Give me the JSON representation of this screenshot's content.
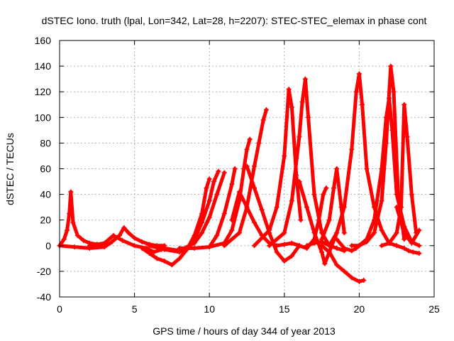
{
  "chart_data": {
    "type": "line",
    "title": "dSTEC Iono. truth (lpal, Lon=342, Lat=28, h=2207): STEC-STEC_elemax in phase cont",
    "xlabel": "GPS time / hours of day 344 of year 2013",
    "ylabel": "dSTEC  / TECUs",
    "xlim": [
      0,
      25
    ],
    "ylim": [
      -40,
      160
    ],
    "xticks": [
      0,
      5,
      10,
      15,
      20,
      25
    ],
    "yticks": [
      -40,
      -20,
      0,
      20,
      40,
      60,
      80,
      100,
      120,
      140,
      160
    ],
    "grid": true,
    "marker": "+",
    "series_color": "#ff0000",
    "series": [
      {
        "x": [
          0.0,
          0.3,
          0.5,
          0.65,
          0.75,
          0.9,
          1.2,
          1.6,
          2.0,
          2.5,
          3.0
        ],
        "y": [
          0,
          5,
          12,
          25,
          42,
          18,
          8,
          4,
          2,
          1,
          0
        ]
      },
      {
        "x": [
          0.0,
          1.0,
          2.0,
          3.0,
          3.5,
          4.0,
          4.3,
          4.6,
          5.0,
          5.5,
          6.0,
          6.5,
          7.0
        ],
        "y": [
          0,
          -1,
          -2,
          -1,
          3,
          8,
          14,
          10,
          6,
          3,
          1,
          0,
          0
        ]
      },
      {
        "x": [
          2.0,
          3.0,
          3.6,
          4.2,
          5.0,
          5.8,
          6.3,
          6.8
        ],
        "y": [
          0,
          2,
          8,
          4,
          0,
          -2,
          -5,
          -3
        ]
      },
      {
        "x": [
          5.5,
          6.0,
          6.5,
          7.0,
          7.5,
          8.0,
          8.5,
          9.0,
          9.5,
          9.8,
          10.0
        ],
        "y": [
          -2,
          -6,
          -10,
          -12,
          -15,
          -10,
          -3,
          8,
          25,
          45,
          52
        ]
      },
      {
        "x": [
          6.0,
          7.0,
          8.0,
          8.5,
          9.0,
          9.5,
          10.0,
          10.3,
          10.6
        ],
        "y": [
          0,
          -3,
          -5,
          -3,
          5,
          18,
          35,
          50,
          58
        ]
      },
      {
        "x": [
          7.0,
          8.0,
          9.0,
          9.5,
          10.0,
          10.5,
          11.0
        ],
        "y": [
          -2,
          -4,
          2,
          10,
          22,
          40,
          57
        ]
      },
      {
        "x": [
          8.0,
          9.0,
          10.0,
          10.5,
          11.0,
          11.5,
          11.7
        ],
        "y": [
          -2,
          -2,
          -1,
          8,
          25,
          48,
          60
        ]
      },
      {
        "x": [
          10.0,
          11.0,
          11.5,
          12.0,
          12.3,
          12.5,
          12.7
        ],
        "y": [
          -1,
          2,
          12,
          35,
          60,
          75,
          83
        ]
      },
      {
        "x": [
          11.0,
          12.0,
          12.5,
          13.0,
          13.3,
          13.6,
          13.8
        ],
        "y": [
          0,
          10,
          30,
          62,
          80,
          98,
          106
        ]
      },
      {
        "x": [
          11.5,
          12.0,
          12.5,
          13.0,
          13.5,
          14.0,
          14.5,
          15.0,
          15.5,
          16.0,
          16.5
        ],
        "y": [
          20,
          42,
          30,
          18,
          8,
          2,
          0,
          1,
          2,
          0,
          -2
        ]
      },
      {
        "x": [
          12.5,
          13.0,
          13.5,
          14.0,
          14.5,
          15.0,
          15.5,
          16.0
        ],
        "y": [
          62,
          45,
          28,
          10,
          -5,
          -12,
          -8,
          0
        ]
      },
      {
        "x": [
          13.0,
          14.0,
          14.5,
          15.0,
          15.3,
          15.5,
          15.8,
          16.1
        ],
        "y": [
          0,
          12,
          30,
          70,
          122,
          108,
          55,
          20
        ]
      },
      {
        "x": [
          14.0,
          15.0,
          15.5,
          16.0,
          16.2,
          16.4,
          16.6,
          17.0,
          17.5,
          18.0
        ],
        "y": [
          0,
          10,
          35,
          85,
          112,
          130,
          100,
          40,
          10,
          0
        ]
      },
      {
        "x": [
          15.5,
          16.0,
          16.5,
          17.0,
          17.3,
          17.6,
          17.8
        ],
        "y": [
          2,
          0,
          -2,
          5,
          20,
          40,
          45
        ]
      },
      {
        "x": [
          16.0,
          16.5,
          17.0,
          17.5,
          17.7,
          18.0,
          18.5
        ],
        "y": [
          50,
          30,
          10,
          -5,
          -14,
          -5,
          10
        ]
      },
      {
        "x": [
          17.5,
          18.0,
          18.5,
          19.0,
          19.5,
          20.0,
          20.3
        ],
        "y": [
          0,
          -5,
          -15,
          -20,
          -25,
          -28,
          -27
        ]
      },
      {
        "x": [
          16.5,
          17.0,
          17.5,
          18.0,
          18.5,
          19.0
        ],
        "y": [
          0,
          2,
          3,
          0,
          -2,
          -4
        ]
      },
      {
        "x": [
          17.5,
          18.0,
          18.3,
          18.5,
          18.8,
          19.0
        ],
        "y": [
          5,
          20,
          45,
          60,
          30,
          10
        ]
      },
      {
        "x": [
          18.0,
          18.5,
          19.0,
          19.5,
          19.8,
          20.0,
          20.2,
          20.5,
          21.0,
          21.5,
          22.0
        ],
        "y": [
          0,
          10,
          30,
          75,
          120,
          134,
          110,
          60,
          30,
          12,
          2
        ]
      },
      {
        "x": [
          18.5,
          19.0,
          19.5,
          19.8,
          20.0,
          20.2
        ],
        "y": [
          5,
          -2,
          -4,
          -2,
          0,
          2
        ]
      },
      {
        "x": [
          19.5,
          20.0,
          20.5,
          21.0,
          21.5,
          21.8,
          22.1,
          22.3,
          22.6,
          23.0
        ],
        "y": [
          0,
          0,
          3,
          10,
          35,
          80,
          140,
          120,
          40,
          5
        ]
      },
      {
        "x": [
          20.0,
          20.5,
          21.0,
          21.5,
          21.8,
          22.0,
          22.2,
          22.5,
          23.0,
          23.5,
          24.0
        ],
        "y": [
          0,
          5,
          20,
          60,
          100,
          115,
          90,
          40,
          15,
          3,
          0
        ]
      },
      {
        "x": [
          21.5,
          22.0,
          22.5,
          22.8,
          23.0,
          23.2,
          23.5,
          23.8
        ],
        "y": [
          0,
          2,
          10,
          30,
          110,
          85,
          40,
          10
        ]
      },
      {
        "x": [
          22.0,
          22.5,
          23.0,
          23.3,
          23.6,
          24.0
        ],
        "y": [
          2,
          0,
          -2,
          -4,
          -5,
          -6
        ]
      },
      {
        "x": [
          22.5,
          23.0,
          23.5,
          24.0
        ],
        "y": [
          30,
          10,
          2,
          12
        ]
      }
    ]
  }
}
